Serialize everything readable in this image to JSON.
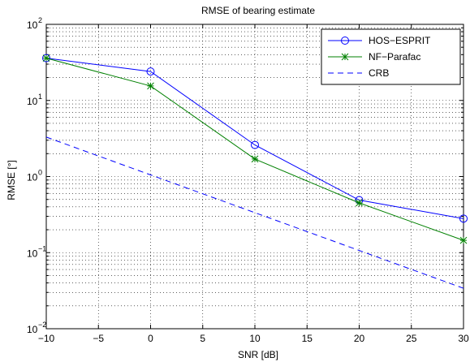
{
  "chart_data": {
    "type": "line",
    "title": "RMSE of bearing estimate",
    "xlabel": "SNR [dB]",
    "ylabel": "RMSE [°]",
    "xlim": [
      -10,
      30
    ],
    "ylim": [
      0.01,
      100
    ],
    "yscale": "log",
    "grid": "on",
    "legend_position": "top-right",
    "x_ticks": [
      -10,
      -5,
      0,
      5,
      10,
      15,
      20,
      25,
      30
    ],
    "x_tick_labels": [
      "−10",
      "−5",
      "0",
      "5",
      "10",
      "15",
      "20",
      "25",
      "30"
    ],
    "y_ticks": [
      {
        "value": 0.01,
        "base": "10",
        "exp": "−2"
      },
      {
        "value": 0.1,
        "base": "10",
        "exp": "−1"
      },
      {
        "value": 1,
        "base": "10",
        "exp": "0"
      },
      {
        "value": 10,
        "base": "10",
        "exp": "1"
      },
      {
        "value": 100,
        "base": "10",
        "exp": "2"
      }
    ],
    "series": [
      {
        "name": "HOS−ESPRIT",
        "color": "#0000ff",
        "line": "solid",
        "marker": "circle",
        "x": [
          -10,
          0,
          10,
          20,
          30
        ],
        "y": [
          36,
          24,
          2.6,
          0.49,
          0.28
        ]
      },
      {
        "name": "NF−Parafac",
        "color": "#008000",
        "line": "solid",
        "marker": "star",
        "x": [
          -10,
          0,
          10,
          20,
          30
        ],
        "y": [
          36,
          15.5,
          1.7,
          0.45,
          0.145
        ]
      },
      {
        "name": "CRB",
        "color": "#0000ff",
        "line": "dashed",
        "marker": "none",
        "x": [
          -10,
          30
        ],
        "y": [
          3.3,
          0.034
        ]
      }
    ]
  }
}
